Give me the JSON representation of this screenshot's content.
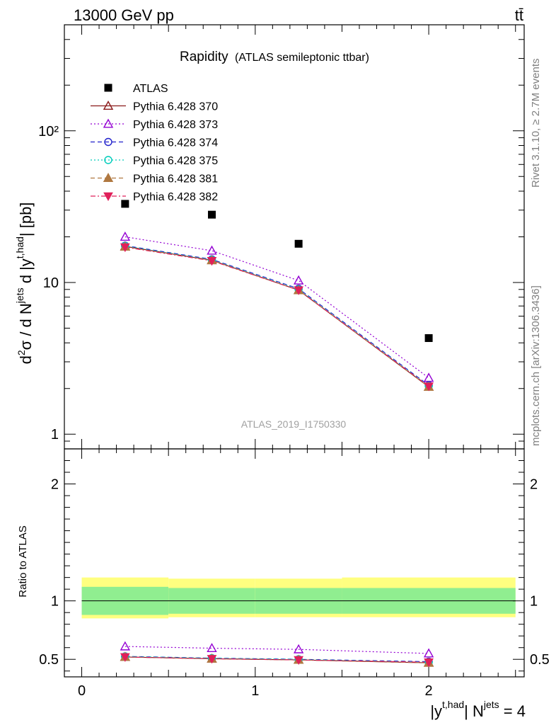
{
  "header": {
    "energy": "13000 GeV pp",
    "process": "tt̄"
  },
  "side_labels": {
    "rivet": "Rivet 3.1.10, ≥ 2.7M events",
    "mcplots": "mcplots.cern.ch [arXiv:1306.3436]"
  },
  "analysis_id": "ATLAS_2019_I1750330",
  "chart_data": [
    {
      "type": "scatter",
      "title": "Rapidity",
      "subtitle": "(ATLAS semileptonic ttbar)",
      "xlabel": "|y^{t,had}| N^{jets} = 4",
      "ylabel": "d²σ / d N^{jets} d |y^{t,had}| [pb]",
      "yscale": "log",
      "xlim": [
        -0.1,
        2.55
      ],
      "ylim": [
        0.8,
        500
      ],
      "ytick_labels": [
        "1",
        "10",
        "10²"
      ],
      "x": [
        0.25,
        0.75,
        1.25,
        2.0
      ],
      "x_bins": [
        [
          0,
          0.5
        ],
        [
          0.5,
          1.0
        ],
        [
          1.0,
          1.5
        ],
        [
          1.5,
          2.5
        ]
      ],
      "legend_position": "top-left",
      "series": [
        {
          "name": "ATLAS",
          "values": [
            33,
            28,
            18,
            4.3
          ],
          "color": "#000000",
          "marker": "square",
          "line": "none"
        },
        {
          "name": "Pythia 6.428 370",
          "values": [
            17.3,
            14.0,
            8.9,
            2.05
          ],
          "color": "#8b1a1a",
          "marker": "triangle-open",
          "line": "solid"
        },
        {
          "name": "Pythia 6.428 373",
          "values": [
            20.0,
            16.2,
            10.3,
            2.35
          ],
          "color": "#9400d3",
          "marker": "triangle-open",
          "line": "dotted"
        },
        {
          "name": "Pythia 6.428 374",
          "values": [
            17.5,
            14.2,
            9.1,
            2.1
          ],
          "color": "#2222cc",
          "marker": "circle-open",
          "line": "dashed"
        },
        {
          "name": "Pythia 6.428 375",
          "values": [
            17.4,
            14.1,
            9.0,
            2.08
          ],
          "color": "#00ccbb",
          "marker": "circle-open",
          "line": "dotted"
        },
        {
          "name": "Pythia 6.428 381",
          "values": [
            17.2,
            14.0,
            8.9,
            2.05
          ],
          "color": "#b07840",
          "marker": "triangle-filled",
          "line": "dashed"
        },
        {
          "name": "Pythia 6.428 382",
          "values": [
            17.1,
            13.9,
            8.9,
            2.07
          ],
          "color": "#e0205a",
          "marker": "triangle-down-filled",
          "line": "dashdot"
        }
      ]
    },
    {
      "type": "scatter",
      "ylabel": "Ratio to ATLAS",
      "xlabel": "|y^{t,had}| N^{jets} = 4",
      "xlim": [
        -0.1,
        2.55
      ],
      "ylim": [
        0.35,
        2.3
      ],
      "ytick_labels": [
        "0.5",
        "1",
        "2"
      ],
      "xtick_labels": [
        "0",
        "1",
        "2"
      ],
      "x": [
        0.25,
        0.75,
        1.25,
        2.0
      ],
      "bands": {
        "stat_color": "#90ee90",
        "total_color": "#ffff80",
        "bins": [
          {
            "x0": 0.0,
            "x1": 0.5,
            "stat": [
              0.88,
              1.12
            ],
            "total": [
              0.85,
              1.2
            ]
          },
          {
            "x0": 0.5,
            "x1": 1.0,
            "stat": [
              0.89,
              1.11
            ],
            "total": [
              0.86,
              1.19
            ]
          },
          {
            "x0": 1.0,
            "x1": 1.5,
            "stat": [
              0.89,
              1.11
            ],
            "total": [
              0.86,
              1.19
            ]
          },
          {
            "x0": 1.5,
            "x1": 2.5,
            "stat": [
              0.89,
              1.11
            ],
            "total": [
              0.86,
              1.2
            ]
          }
        ]
      },
      "series": [
        {
          "name": "Pythia 6.428 370",
          "values": [
            0.52,
            0.505,
            0.495,
            0.47
          ]
        },
        {
          "name": "Pythia 6.428 373",
          "values": [
            0.61,
            0.595,
            0.585,
            0.55
          ]
        },
        {
          "name": "Pythia 6.428 374",
          "values": [
            0.525,
            0.51,
            0.5,
            0.48
          ]
        },
        {
          "name": "Pythia 6.428 375",
          "values": [
            0.525,
            0.51,
            0.5,
            0.475
          ]
        },
        {
          "name": "Pythia 6.428 381",
          "values": [
            0.52,
            0.505,
            0.495,
            0.47
          ]
        },
        {
          "name": "Pythia 6.428 382",
          "values": [
            0.52,
            0.505,
            0.495,
            0.475
          ]
        }
      ]
    }
  ]
}
